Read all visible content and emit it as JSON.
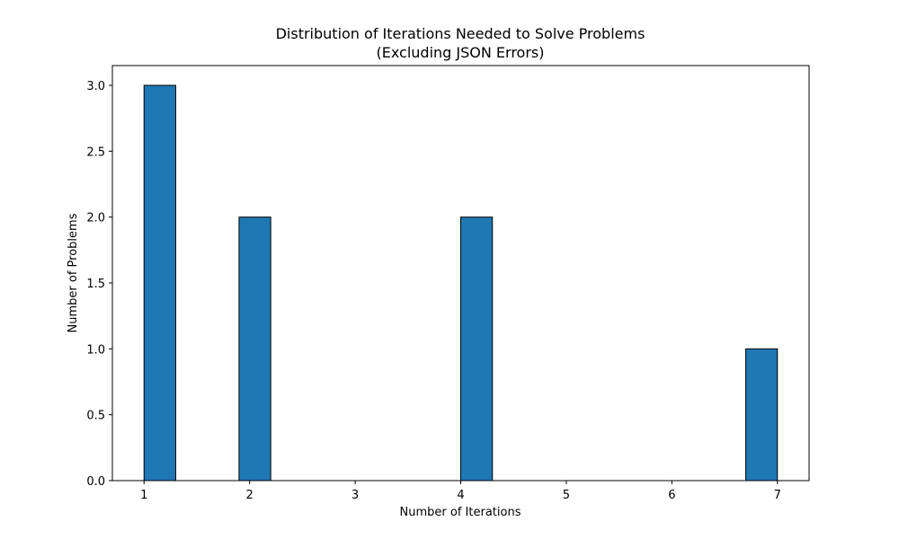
{
  "chart_data": {
    "type": "bar",
    "title_line1": "Distribution of Iterations Needed to Solve Problems",
    "title_line2": "(Excluding JSON Errors)",
    "xlabel": "Number of Iterations",
    "ylabel": "Number of Problems",
    "xlim": [
      0.7,
      7.3
    ],
    "ylim": [
      0,
      3.15
    ],
    "xticks": [
      1,
      2,
      3,
      4,
      5,
      6,
      7
    ],
    "xtick_labels": [
      "1",
      "2",
      "3",
      "4",
      "5",
      "6",
      "7"
    ],
    "yticks": [
      0,
      0.5,
      1,
      1.5,
      2,
      2.5,
      3
    ],
    "ytick_labels": [
      "0.0",
      "0.5",
      "1.0",
      "1.5",
      "2.0",
      "2.5",
      "3.0"
    ],
    "bins": [
      {
        "start": 1.0,
        "end": 1.3,
        "count": 3
      },
      {
        "start": 1.9,
        "end": 2.2,
        "count": 2
      },
      {
        "start": 4.0,
        "end": 4.3,
        "count": 2
      },
      {
        "start": 6.7,
        "end": 7.0,
        "count": 1
      }
    ],
    "bar_color": "#1f77b4",
    "edge_color": "#000000",
    "grid": false,
    "legend": "none"
  }
}
